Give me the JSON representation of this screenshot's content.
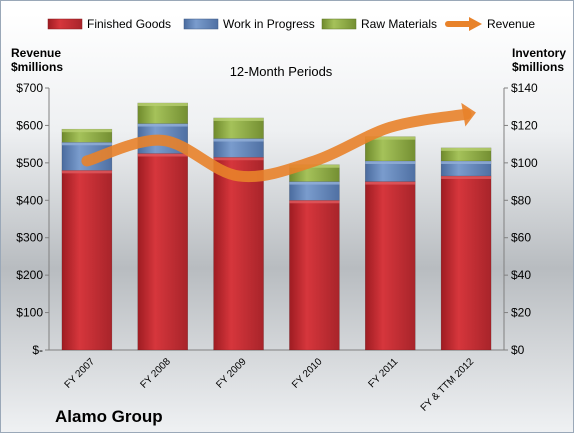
{
  "company_name": "Alamo Group",
  "chart_data": {
    "type": "bar",
    "subtype": "stacked bar with line overlay",
    "title": "12-Month Periods",
    "categories": [
      "FY 2007",
      "FY 2008",
      "FY 2009",
      "FY 2010",
      "FY 2011",
      "FY & TTM 2012"
    ],
    "left_axis": {
      "label_line1": "Revenue",
      "label_line2": "$millions",
      "ticks": [
        "$-",
        "$100",
        "$200",
        "$300",
        "$400",
        "$500",
        "$600",
        "$700"
      ],
      "range": [
        0,
        700
      ]
    },
    "right_axis": {
      "label_line1": "Inventory",
      "label_line2": "$millions",
      "ticks": [
        "$0",
        "$20",
        "$40",
        "$60",
        "$80",
        "$100",
        "$120",
        "$140"
      ],
      "range": [
        0,
        140
      ]
    },
    "series": [
      {
        "name": "Finished Goods",
        "axis": "right",
        "color": "#c0272d",
        "values": [
          96,
          105,
          103,
          80,
          90,
          93
        ]
      },
      {
        "name": "Work in Progress",
        "axis": "right",
        "color": "#5b7fb5",
        "values": [
          15,
          16,
          10,
          10,
          11,
          8
        ]
      },
      {
        "name": "Raw Materials",
        "axis": "right",
        "color": "#8aa63e",
        "values": [
          7,
          11,
          11,
          9,
          13,
          7
        ]
      },
      {
        "name": "Revenue",
        "axis": "left",
        "type": "line",
        "color": "#e8822a",
        "values": [
          505,
          560,
          465,
          505,
          595,
          630
        ]
      }
    ],
    "legend_position": "top",
    "grid": false
  }
}
